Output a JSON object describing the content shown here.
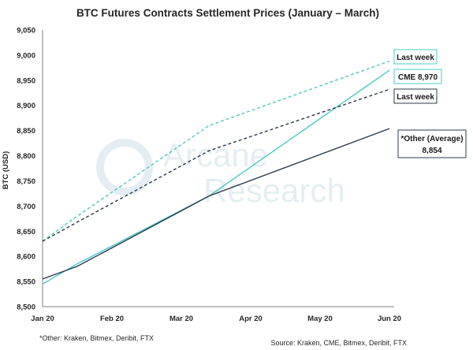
{
  "chart_data": {
    "type": "line",
    "title": "BTC Futures Contracts Settlement Prices (January – March)",
    "ylabel": "BTC (USD)",
    "xlabel": "",
    "x_ticks": [
      "Jan 20",
      "Feb 20",
      "Mar 20",
      "Apr 20",
      "May 20",
      "Jun 20"
    ],
    "ylim": [
      8500,
      9050
    ],
    "y_ticks": [
      8500,
      8550,
      8600,
      8650,
      8700,
      8750,
      8800,
      8850,
      8900,
      8950,
      9000,
      9050
    ],
    "series": [
      {
        "name": "CME",
        "color": "#4cc8c8",
        "dash": false,
        "points": [
          [
            0,
            8545
          ],
          [
            0.5,
            8585
          ],
          [
            2.4,
            8720
          ],
          [
            5,
            8970
          ]
        ]
      },
      {
        "name": "CME last week",
        "color": "#4cc8c8",
        "dash": true,
        "points": [
          [
            0,
            8630
          ],
          [
            0.5,
            8680
          ],
          [
            2.4,
            8860
          ],
          [
            5,
            8988
          ]
        ]
      },
      {
        "name": "Other (Average)",
        "color": "#2b3a4a",
        "dash": false,
        "points": [
          [
            0,
            8555
          ],
          [
            0.5,
            8580
          ],
          [
            2.4,
            8720
          ],
          [
            5,
            8854
          ]
        ]
      },
      {
        "name": "Other last week",
        "color": "#2b3a4a",
        "dash": true,
        "points": [
          [
            0,
            8630
          ],
          [
            0.5,
            8668
          ],
          [
            2.4,
            8810
          ],
          [
            5,
            8932
          ]
        ]
      }
    ],
    "labels": {
      "cme_last_week": "Last week",
      "cme": "CME 8,970",
      "other_last_week": "Last week",
      "other_line1": "*Other (Average)",
      "other_line2": "8,854"
    },
    "footnote": "*Other: Kraken, Bitmex, Deribit, FTX",
    "source": "Source: Kraken, CME, Bitmex, Deribit, FTX"
  },
  "watermark": {
    "brand_line1": "Arcane",
    "brand_line2": "Research"
  },
  "colors": {
    "cme": "#4cc8c8",
    "other": "#2b3a4a",
    "axis": "#7f7f7f"
  }
}
